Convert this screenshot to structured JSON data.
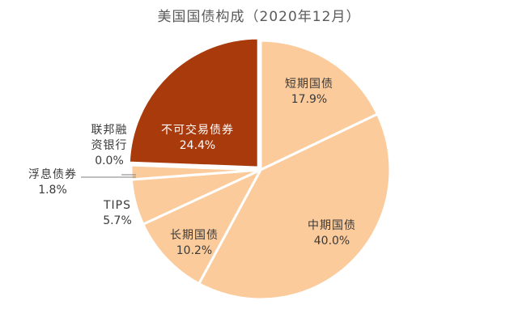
{
  "chart_data": {
    "type": "pie",
    "title": "美国国债构成（2020年12月）",
    "slices": [
      {
        "label": "短期国债",
        "value": 17.9,
        "value_label": "17.9%",
        "color": "#fbcb9c",
        "label_color": "#3a3a3a"
      },
      {
        "label": "中期国债",
        "value": 40.0,
        "value_label": "40.0%",
        "color": "#fbcb9c",
        "label_color": "#3a3a3a"
      },
      {
        "label": "长期国债",
        "value": 10.2,
        "value_label": "10.2%",
        "color": "#fbcb9c",
        "label_color": "#3a3a3a"
      },
      {
        "label": "TIPS",
        "value": 5.7,
        "value_label": "5.7%",
        "color": "#fbcb9c",
        "label_color": "#3a3a3a"
      },
      {
        "label": "浮息债券",
        "value": 1.8,
        "value_label": "1.8%",
        "color": "#fbcb9c",
        "label_color": "#3a3a3a"
      },
      {
        "label": "联邦融资银行",
        "value": 0.0,
        "value_label": "0.0%",
        "color": "#fbcb9c",
        "label_color": "#3a3a3a"
      },
      {
        "label": "不可交易债券",
        "value": 24.4,
        "value_label": "24.4%",
        "color": "#a93a0c",
        "label_color": "#ffffff"
      }
    ],
    "legend": "none",
    "labels": "mixed: inside for large slices, outside with leader line for small slices"
  }
}
